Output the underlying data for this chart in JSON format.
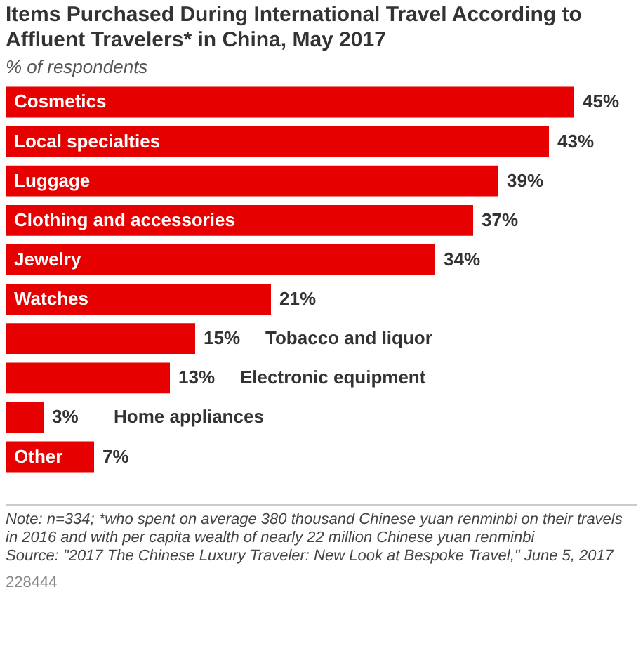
{
  "chart_data": {
    "type": "bar",
    "orientation": "horizontal",
    "title": "Items Purchased During International Travel According to Affluent Travelers* in China, May 2017",
    "subtitle": "% of respondents",
    "categories": [
      "Cosmetics",
      "Local specialties",
      "Luggage",
      "Clothing and accessories",
      "Jewelry",
      "Watches",
      "Tobacco and liquor",
      "Electronic equipment",
      "Home appliances",
      "Other"
    ],
    "values": [
      45,
      43,
      39,
      37,
      34,
      21,
      15,
      13,
      3,
      7
    ],
    "value_labels": [
      "45%",
      "43%",
      "39%",
      "37%",
      "34%",
      "21%",
      "15%",
      "13%",
      "3%",
      "7%"
    ],
    "color": "#e60000",
    "annotations": [
      "Note: n=334; *who spent on average 380 thousand Chinese yuan renminbi on their travels in 2016 and with per capita wealth of nearly 22 million Chinese yuan renminbi",
      "Source: \"2017 The Chinese Luxury Traveler: New Look at Bespoke Travel,\" June 5, 2017",
      "228444"
    ]
  }
}
